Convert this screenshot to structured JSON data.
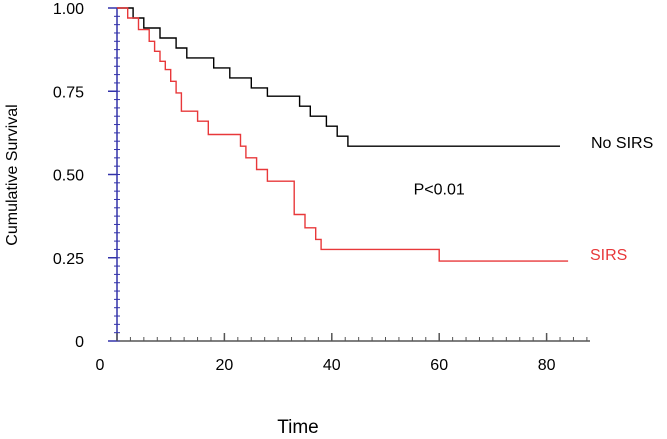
{
  "chart_data": {
    "type": "line",
    "step": true,
    "title": "",
    "xlabel": "Time",
    "ylabel": "Cumulative Survival",
    "xlim": [
      0,
      90
    ],
    "ylim": [
      0,
      1.0
    ],
    "x_ticks": [
      0,
      20,
      40,
      60,
      80
    ],
    "x_tick_labels": [
      "0",
      "20",
      "40",
      "60",
      "80"
    ],
    "y_ticks": [
      0,
      0.25,
      0.5,
      0.75,
      1.0
    ],
    "y_tick_labels": [
      "0",
      "0.25",
      "0.50",
      "0.75",
      "1.00"
    ],
    "x_minor_step": 2.5,
    "y_minor_step": 0.025,
    "grid": false,
    "axis_color": "#3333aa",
    "series": [
      {
        "name": "No SIRS",
        "color": "#000000",
        "points": [
          [
            0,
            1.0
          ],
          [
            3,
            1.0
          ],
          [
            3,
            0.97
          ],
          [
            5,
            0.97
          ],
          [
            5,
            0.94
          ],
          [
            8,
            0.94
          ],
          [
            8,
            0.91
          ],
          [
            11,
            0.91
          ],
          [
            11,
            0.88
          ],
          [
            13,
            0.88
          ],
          [
            13,
            0.85
          ],
          [
            18,
            0.85
          ],
          [
            18,
            0.82
          ],
          [
            21,
            0.82
          ],
          [
            21,
            0.79
          ],
          [
            25,
            0.79
          ],
          [
            25,
            0.76
          ],
          [
            28,
            0.76
          ],
          [
            28,
            0.735
          ],
          [
            34,
            0.735
          ],
          [
            34,
            0.705
          ],
          [
            36,
            0.705
          ],
          [
            36,
            0.675
          ],
          [
            39,
            0.675
          ],
          [
            39,
            0.645
          ],
          [
            41,
            0.645
          ],
          [
            41,
            0.615
          ],
          [
            43,
            0.615
          ],
          [
            43,
            0.585
          ],
          [
            82.5,
            0.585
          ]
        ]
      },
      {
        "name": "SIRS",
        "color": "#e8383a",
        "points": [
          [
            0,
            1.0
          ],
          [
            2,
            1.0
          ],
          [
            2,
            0.97
          ],
          [
            4,
            0.97
          ],
          [
            4,
            0.935
          ],
          [
            6,
            0.935
          ],
          [
            6,
            0.9
          ],
          [
            7,
            0.9
          ],
          [
            7,
            0.87
          ],
          [
            8,
            0.87
          ],
          [
            8,
            0.84
          ],
          [
            9,
            0.84
          ],
          [
            9,
            0.815
          ],
          [
            10,
            0.815
          ],
          [
            10,
            0.78
          ],
          [
            11,
            0.78
          ],
          [
            11,
            0.745
          ],
          [
            12,
            0.745
          ],
          [
            12,
            0.69
          ],
          [
            15,
            0.69
          ],
          [
            15,
            0.66
          ],
          [
            17,
            0.66
          ],
          [
            17,
            0.62
          ],
          [
            23,
            0.62
          ],
          [
            23,
            0.585
          ],
          [
            24,
            0.585
          ],
          [
            24,
            0.55
          ],
          [
            26,
            0.55
          ],
          [
            26,
            0.515
          ],
          [
            28,
            0.515
          ],
          [
            28,
            0.48
          ],
          [
            33,
            0.48
          ],
          [
            33,
            0.38
          ],
          [
            35,
            0.38
          ],
          [
            35,
            0.34
          ],
          [
            37,
            0.34
          ],
          [
            37,
            0.305
          ],
          [
            38,
            0.305
          ],
          [
            38,
            0.275
          ],
          [
            60,
            0.275
          ],
          [
            60,
            0.24
          ],
          [
            84,
            0.24
          ]
        ]
      }
    ],
    "annotations": [
      {
        "text": "P<0.01",
        "x": 60,
        "y": 0.5
      }
    ]
  }
}
